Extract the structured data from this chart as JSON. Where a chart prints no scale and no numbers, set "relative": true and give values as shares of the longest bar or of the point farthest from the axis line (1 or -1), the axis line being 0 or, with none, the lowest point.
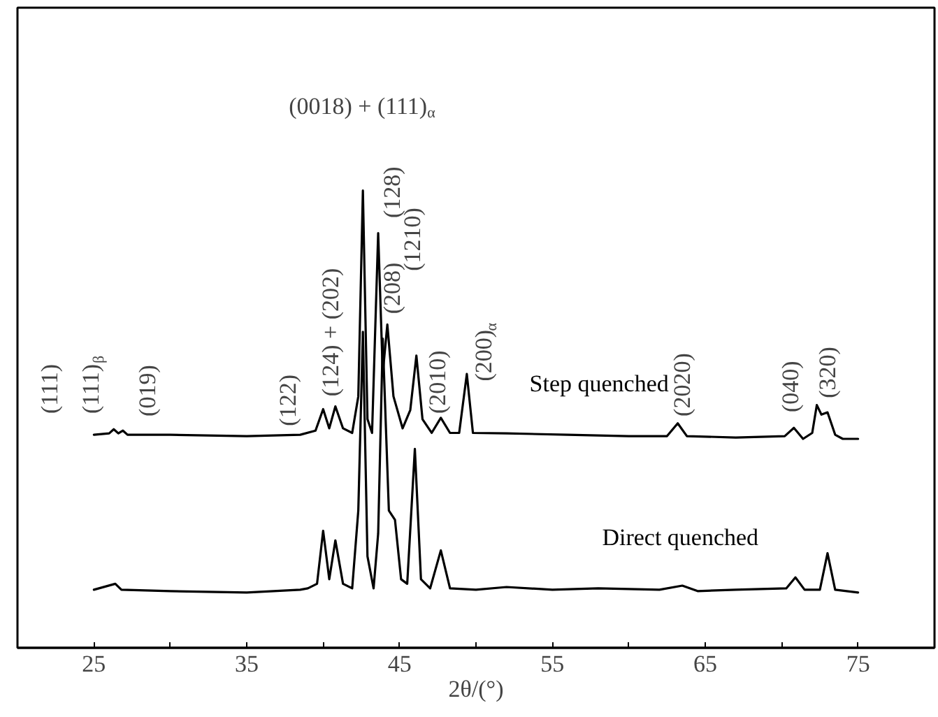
{
  "chart_data": {
    "type": "line",
    "relative": true,
    "xlabel": "2θ/(°)",
    "xlim": [
      20,
      80
    ],
    "xticks": [
      25,
      {
        "value": 30,
        "label": null
      },
      35,
      {
        "value": 40,
        "label": null
      },
      45,
      {
        "value": 50,
        "label": null
      },
      55,
      {
        "value": 60,
        "label": null
      },
      65,
      {
        "value": 70,
        "label": null
      },
      75
    ],
    "grid": false,
    "marker": "none",
    "line_style": "solid",
    "series": [
      {
        "name": "Step quenched",
        "color": "#000000",
        "x": [
          25.0,
          26.0,
          26.3,
          26.6,
          26.9,
          27.2,
          30,
          35,
          38.5,
          39.5,
          40.0,
          40.4,
          40.8,
          41.3,
          41.9,
          42.3,
          42.6,
          42.9,
          43.2,
          43.6,
          43.9,
          44.2,
          44.6,
          45.2,
          45.7,
          46.1,
          46.5,
          47.1,
          47.7,
          48.3,
          48.9,
          49.4,
          49.8,
          52,
          56,
          60,
          62.5,
          63.2,
          63.8,
          67,
          70.2,
          70.8,
          71.4,
          72.0,
          72.3,
          72.6,
          73.0,
          73.5,
          74.0,
          75.0
        ],
        "values": [
          0.466,
          0.469,
          0.478,
          0.469,
          0.475,
          0.466,
          0.466,
          0.463,
          0.466,
          0.475,
          0.522,
          0.48,
          0.528,
          0.48,
          0.47,
          0.55,
          1.0,
          0.5,
          0.47,
          0.907,
          0.6,
          0.707,
          0.55,
          0.48,
          0.52,
          0.639,
          0.5,
          0.47,
          0.503,
          0.47,
          0.47,
          0.599,
          0.47,
          0.469,
          0.466,
          0.463,
          0.463,
          0.491,
          0.463,
          0.46,
          0.463,
          0.481,
          0.457,
          0.47,
          0.531,
          0.51,
          0.515,
          0.466,
          0.457,
          0.457
        ]
      },
      {
        "name": "Direct quenched",
        "color": "#000000",
        "x": [
          25,
          26.4,
          26.8,
          30,
          35,
          38.5,
          39.0,
          39.6,
          40.0,
          40.4,
          40.8,
          41.3,
          41.9,
          42.3,
          42.6,
          42.9,
          43.3,
          43.6,
          43.9,
          44.3,
          44.7,
          45.1,
          45.5,
          46.0,
          46.4,
          47.0,
          47.7,
          48.3,
          50,
          52,
          55,
          58,
          62,
          63.5,
          64.5,
          67,
          70.3,
          70.9,
          71.5,
          72.5,
          73.0,
          73.5,
          75
        ],
        "values": [
          0.127,
          0.14,
          0.127,
          0.124,
          0.121,
          0.127,
          0.13,
          0.14,
          0.256,
          0.15,
          0.235,
          0.14,
          0.13,
          0.3,
          0.691,
          0.2,
          0.13,
          0.25,
          0.676,
          0.3,
          0.28,
          0.15,
          0.14,
          0.435,
          0.15,
          0.13,
          0.213,
          0.13,
          0.127,
          0.133,
          0.127,
          0.13,
          0.127,
          0.136,
          0.124,
          0.127,
          0.13,
          0.154,
          0.127,
          0.127,
          0.207,
          0.127,
          0.121
        ]
      }
    ],
    "annotations": [
      "(0018) + (111)$_{α}$",
      "(111)",
      "(111)$_{β}$",
      "(019)",
      "(122)",
      "(124) + (202)",
      "(208)",
      "(128)",
      "(1210)",
      "(2010)",
      "(200)$_{α}$",
      "(2020)",
      "(040)",
      "(320)"
    ]
  }
}
